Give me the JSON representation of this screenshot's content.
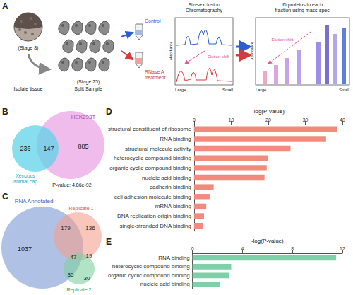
{
  "chart_data": [
    {
      "type": "bar",
      "panel_label": "D",
      "orientation": "horizontal",
      "x_label": "-log(P-value)",
      "categories": [
        "structural constituent of ribosome",
        "RNA binding",
        "structural molecule activity",
        "heterocyclic compound binding",
        "organic cyclic compound binding",
        "nucleic acid binding",
        "cadherin binding",
        "cell adhesion molecule binding",
        "mRNA binding",
        "DNA replication origin binding",
        "single-stranded DNA binding"
      ],
      "values": [
        38.5,
        35.6,
        26,
        20,
        19.6,
        19,
        5.3,
        4.2,
        3.3,
        2.7,
        2.4
      ],
      "color": "#f28b7d",
      "xlim": [
        0,
        40
      ],
      "xticks": [
        0,
        10,
        20,
        30,
        40
      ],
      "grid": false
    },
    {
      "type": "bar",
      "panel_label": "E",
      "orientation": "horizontal",
      "x_label": "-log(P-value)",
      "categories": [
        "RNA binding",
        "heterocyclic compound binding",
        "organic cyclic compound binding",
        "nucleic acid binding"
      ],
      "values": [
        11.5,
        3.1,
        2.9,
        2.2
      ],
      "color": "#7fcfa8",
      "xlim": [
        0,
        12
      ],
      "xticks": [
        0,
        4,
        8,
        12
      ],
      "grid": false
    }
  ],
  "panel_a": {
    "panel_label": "A",
    "stage_1": "(Stage 8)",
    "step_1": "Isolate tissue",
    "stage_2": "(Stage 25)",
    "step_2": "Split Sample",
    "control": "Control",
    "treatment": "RNase A treatment",
    "chromatography": {
      "caption": "Size-exclusion Chromatography",
      "y_label": "Absorbance",
      "x_left": "Large",
      "x_right": "Small",
      "annotation": "Elution shift"
    },
    "mass_spec": {
      "caption": "ID proteins in each fraction using mass-spec",
      "y_label": "Abundance",
      "x_left": "Large",
      "x_right": "Small",
      "annotation": "Elution shift"
    }
  },
  "panel_b": {
    "panel_label": "B",
    "sets": [
      {
        "label": "Xenopus animal cap",
        "color": "#5fd3e8"
      },
      {
        "label": "HEK293T",
        "color": "#eaa6e6"
      }
    ],
    "regions": {
      "only_first": 236,
      "both": 147,
      "only_second": 885
    },
    "p_value": "P-value: 4.86e-92"
  },
  "panel_c": {
    "panel_label": "C",
    "sets": [
      {
        "label": "RNA Annotated",
        "color": "#8fa6dc"
      },
      {
        "label": "Replicate 1",
        "color": "#f4a08e"
      },
      {
        "label": "Replicate 2",
        "color": "#7fd0a0"
      }
    ],
    "regions": {
      "rna_only": 1037,
      "rna_rep1": 179,
      "rep1_only": 136,
      "all": 47,
      "rep1_rep2": 19,
      "rna_rep2": 35,
      "rep2_only": 30
    }
  }
}
